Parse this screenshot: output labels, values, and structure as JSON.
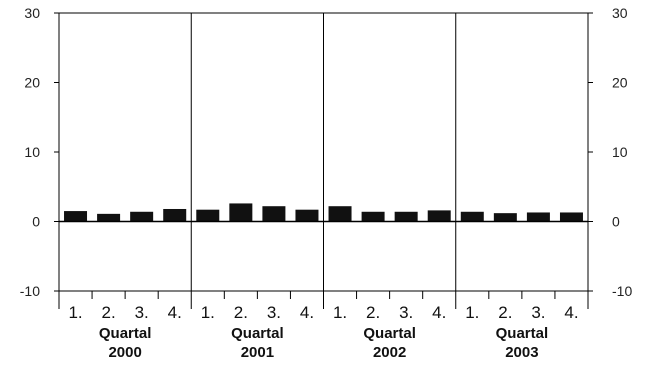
{
  "chart_data": {
    "type": "bar",
    "title": "",
    "xlabel": "",
    "ylabel": "",
    "ylim": [
      -10,
      30
    ],
    "yticks": [
      30,
      20,
      10,
      0,
      -10
    ],
    "grid": "vertical separators between years",
    "groups": [
      {
        "label_line1": "Quartal",
        "label_line2": "2000",
        "quarters": [
          "1.",
          "2.",
          "3.",
          "4."
        ],
        "values": [
          1.5,
          1.1,
          1.4,
          1.8
        ]
      },
      {
        "label_line1": "Quartal",
        "label_line2": "2001",
        "quarters": [
          "1.",
          "2.",
          "3.",
          "4."
        ],
        "values": [
          1.7,
          2.6,
          2.2,
          1.7
        ]
      },
      {
        "label_line1": "Quartal",
        "label_line2": "2002",
        "quarters": [
          "1.",
          "2.",
          "3.",
          "4."
        ],
        "values": [
          2.2,
          1.4,
          1.4,
          1.6
        ]
      },
      {
        "label_line1": "Quartal",
        "label_line2": "2003",
        "quarters": [
          "1.",
          "2.",
          "3.",
          "4."
        ],
        "values": [
          1.4,
          1.2,
          1.3,
          1.3
        ]
      }
    ],
    "bar_color": "#111111"
  }
}
